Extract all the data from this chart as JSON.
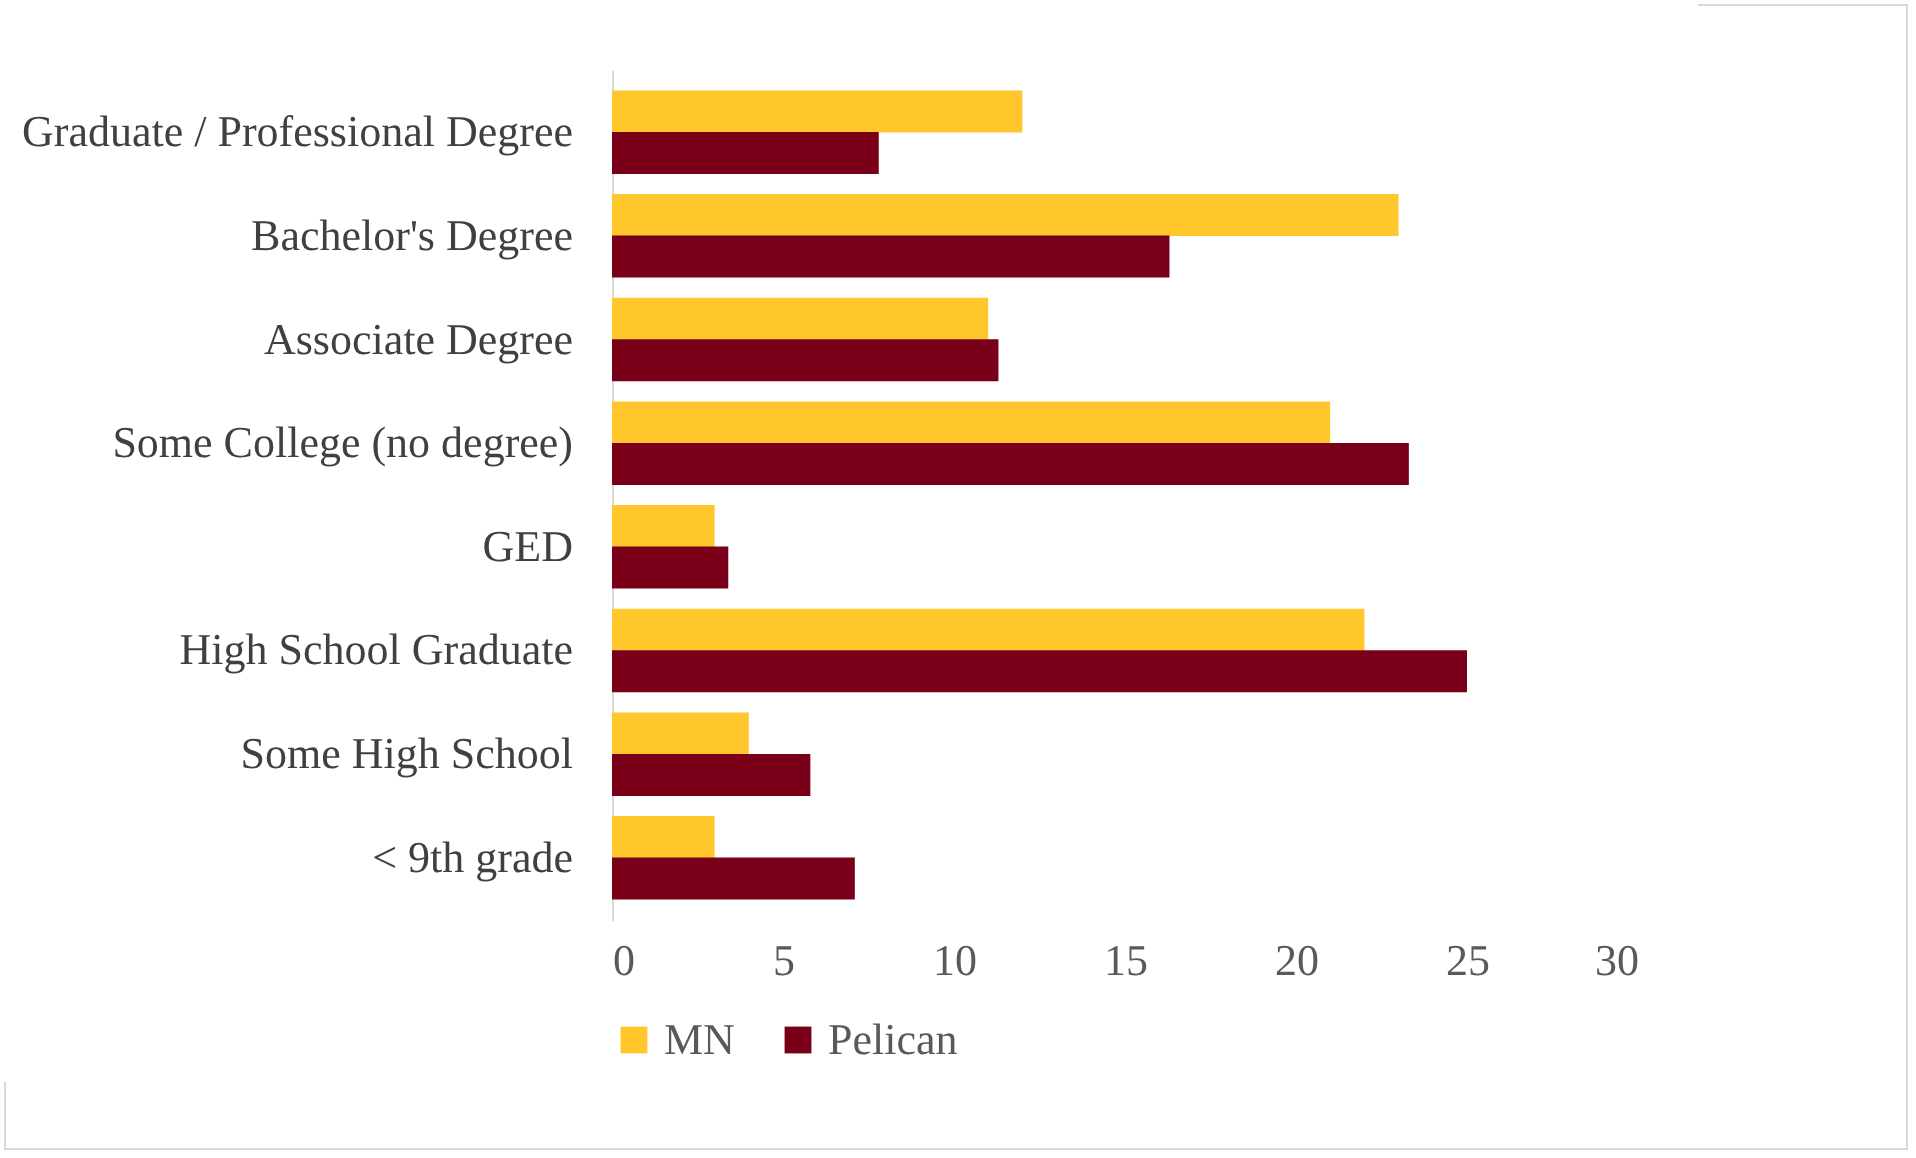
{
  "chart_data": {
    "type": "bar",
    "orientation": "horizontal",
    "categories": [
      "Graduate / Professional Degree",
      "Bachelor's Degree",
      "Associate Degree",
      "Some College (no degree)",
      "GED",
      "High School Graduate",
      "Some High School",
      "< 9th grade"
    ],
    "series": [
      {
        "name": "MN",
        "color": "#ffc72c",
        "values": [
          12.0,
          23.0,
          11.0,
          21.0,
          3.0,
          22.0,
          4.0,
          3.0
        ]
      },
      {
        "name": "Pelican",
        "color": "#7a0019",
        "values": [
          7.8,
          16.3,
          11.3,
          23.3,
          3.4,
          25.0,
          5.8,
          7.1
        ]
      }
    ],
    "xlim": [
      0,
      30
    ],
    "xticks": [
      0,
      5,
      10,
      15,
      20,
      25,
      30
    ],
    "grid": false,
    "legend": "bottom"
  }
}
